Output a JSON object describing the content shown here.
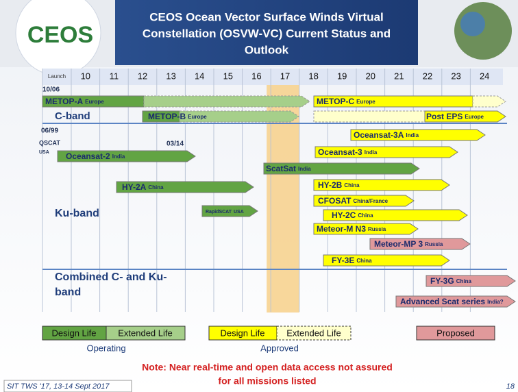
{
  "header": {
    "logo": "CEOS",
    "title_lines": [
      "CEOS Ocean Vector Surface Winds Virtual",
      "Constellation (OSVW-VC)  Current Status and",
      "Outlook"
    ]
  },
  "timeline": {
    "launch_label": "Launch",
    "years": [
      10,
      11,
      12,
      13,
      14,
      15,
      16,
      17,
      18,
      19,
      20,
      21,
      22,
      23,
      24
    ]
  },
  "bands": [
    "C-band",
    "Ku-band",
    "Combined C- and Ku-",
    "band"
  ],
  "annotations": [
    "10/06",
    "06/99",
    "QSCAT",
    "USA",
    "03/14"
  ],
  "missions": [
    {
      "name": "METOP-A",
      "agency": "Europe"
    },
    {
      "name": "METOP-C",
      "agency": "Europe"
    },
    {
      "name": "METOP-B",
      "agency": "Europe"
    },
    {
      "name": "Post EPS",
      "agency": "Europe"
    },
    {
      "name": "Oceansat-3A",
      "agency": "India"
    },
    {
      "name": "Oceansat-2",
      "agency": "India"
    },
    {
      "name": "Oceansat-3",
      "agency": "India"
    },
    {
      "name": "ScatSat",
      "agency": "India"
    },
    {
      "name": "HY-2A",
      "agency": "China"
    },
    {
      "name": "HY-2B",
      "agency": "China"
    },
    {
      "name": "RapidSCAT",
      "agency": "USA"
    },
    {
      "name": "CFOSAT",
      "agency": "China/France"
    },
    {
      "name": "HY-2C",
      "agency": "China"
    },
    {
      "name": "Meteor-M N3",
      "agency": "Russia"
    },
    {
      "name": "Meteor-MP 3",
      "agency": "Russia"
    },
    {
      "name": "FY-3E",
      "agency": "China"
    },
    {
      "name": "FY-3G",
      "agency": "China"
    },
    {
      "name": "Advanced Scat series",
      "agency": "India?"
    }
  ],
  "legend": {
    "operating": {
      "design": "Design Life",
      "extended": "Extended Life",
      "caption": "Operating"
    },
    "approved": {
      "design": "Design Life",
      "extended": "Extended Life",
      "caption": "Approved"
    },
    "proposed": "Proposed"
  },
  "note": [
    "Note: Near real-time and open data access not assured",
    "for all missions listed"
  ],
  "footer": {
    "event": "SIT TWS '17, 13-14 Sept 2017",
    "page": "18"
  }
}
